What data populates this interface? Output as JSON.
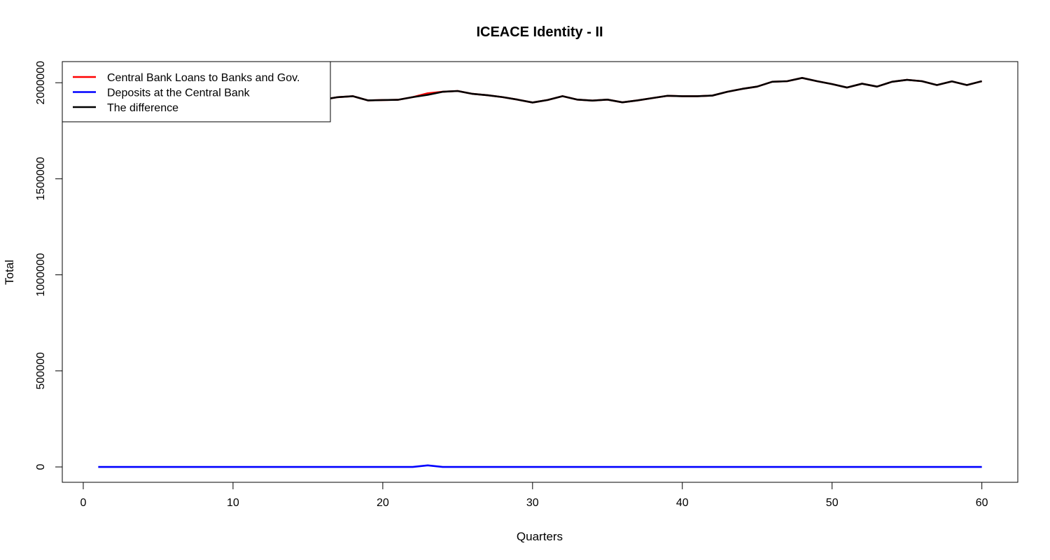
{
  "chart_data": {
    "type": "line",
    "title": "ICEACE Identity - II",
    "xlabel": "Quarters",
    "ylabel": "Total",
    "xlim": [
      -1.4,
      62.4
    ],
    "ylim": [
      -80000,
      2110000
    ],
    "xticks": [
      0,
      10,
      20,
      30,
      40,
      50,
      60
    ],
    "xtick_labels": [
      "0",
      "10",
      "20",
      "30",
      "40",
      "50",
      "60"
    ],
    "yticks": [
      0,
      500000,
      1000000,
      1500000,
      2000000
    ],
    "ytick_labels": [
      "0",
      "500000",
      "1000000",
      "1500000",
      "2000000"
    ],
    "grid": false,
    "legend_position": "top-left",
    "x": [
      1,
      2,
      3,
      4,
      5,
      6,
      7,
      8,
      9,
      10,
      11,
      12,
      13,
      14,
      15,
      16,
      17,
      18,
      19,
      20,
      21,
      22,
      23,
      24,
      25,
      26,
      27,
      28,
      29,
      30,
      31,
      32,
      33,
      34,
      35,
      36,
      37,
      38,
      39,
      40,
      41,
      42,
      43,
      44,
      45,
      46,
      47,
      48,
      49,
      50,
      51,
      52,
      53,
      54,
      55,
      56,
      57,
      58,
      59,
      60
    ],
    "series": [
      {
        "name": "Central Bank Loans to Banks and Gov.",
        "color": "#ff0000",
        "values": [
          1945000,
          1950000,
          1935000,
          1920000,
          1915000,
          1930000,
          1940000,
          1925000,
          1910000,
          1905000,
          1925000,
          1935000,
          1920000,
          1910000,
          1905000,
          1912000,
          1925000,
          1930000,
          1908000,
          1910000,
          1911000,
          1925000,
          1945000,
          1953000,
          1957000,
          1942000,
          1935000,
          1925000,
          1912000,
          1897000,
          1910000,
          1930000,
          1912000,
          1907000,
          1912000,
          1898000,
          1908000,
          1920000,
          1932000,
          1930000,
          1930000,
          1933000,
          1953000,
          1968000,
          1980000,
          2005000,
          2008000,
          2025000,
          2008000,
          1993000,
          1975000,
          1995000,
          1980000,
          2005000,
          2015000,
          2008000,
          1988000,
          2007000,
          1988000,
          2008000
        ]
      },
      {
        "name": "Deposits at the Central Bank",
        "color": "#0000ff",
        "values": [
          0,
          0,
          0,
          0,
          0,
          0,
          0,
          0,
          0,
          0,
          0,
          0,
          0,
          0,
          0,
          0,
          0,
          0,
          0,
          0,
          0,
          0,
          8000,
          0,
          0,
          0,
          0,
          0,
          0,
          0,
          0,
          0,
          0,
          0,
          0,
          0,
          0,
          0,
          0,
          0,
          0,
          0,
          0,
          0,
          0,
          0,
          0,
          0,
          0,
          0,
          0,
          0,
          0,
          0,
          0,
          0,
          0,
          0,
          0,
          0
        ]
      },
      {
        "name": "The difference",
        "color": "#000000",
        "values": [
          1945000,
          1950000,
          1935000,
          1920000,
          1915000,
          1930000,
          1940000,
          1925000,
          1910000,
          1905000,
          1925000,
          1935000,
          1920000,
          1910000,
          1905000,
          1912000,
          1925000,
          1930000,
          1908000,
          1910000,
          1911000,
          1925000,
          1937000,
          1953000,
          1957000,
          1942000,
          1935000,
          1925000,
          1912000,
          1897000,
          1910000,
          1930000,
          1912000,
          1907000,
          1912000,
          1898000,
          1908000,
          1920000,
          1932000,
          1930000,
          1930000,
          1933000,
          1953000,
          1968000,
          1980000,
          2005000,
          2008000,
          2025000,
          2008000,
          1993000,
          1975000,
          1995000,
          1980000,
          2005000,
          2015000,
          2008000,
          1988000,
          2007000,
          1988000,
          2008000
        ]
      }
    ]
  }
}
